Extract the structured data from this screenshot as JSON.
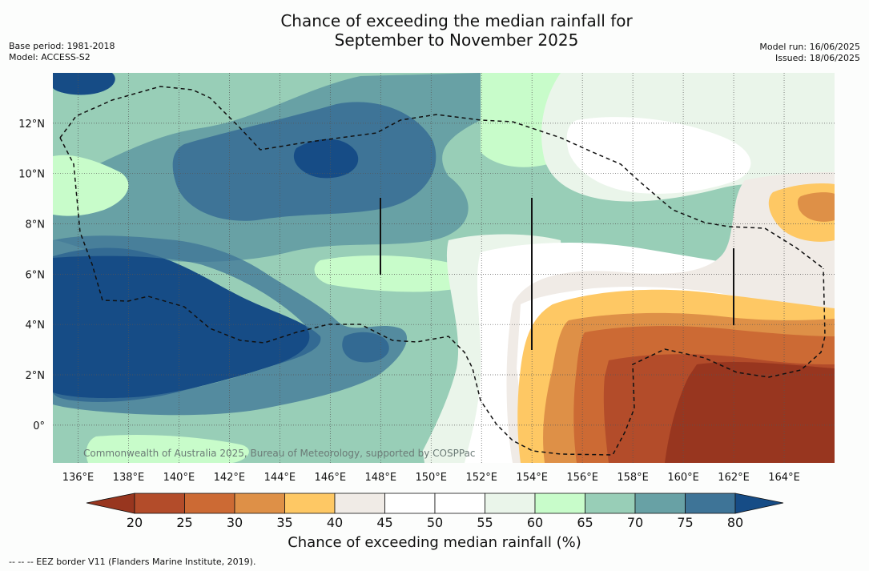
{
  "header": {
    "title_line1": "Chance of exceeding the median rainfall for",
    "title_line2": "September to November 2025",
    "base_period": "Base period: 1981-2018",
    "model": "Model: ACCESS-S2",
    "model_run": "Model run: 16/06/2025",
    "issued": "Issued: 18/06/2025"
  },
  "map": {
    "credit": "Commonwealth of Australia 2025, Bureau of Meteorology, supported by COSPPac",
    "longitude_labels": [
      "136°E",
      "138°E",
      "140°E",
      "142°E",
      "144°E",
      "146°E",
      "148°E",
      "150°E",
      "152°E",
      "154°E",
      "156°E",
      "158°E",
      "160°E",
      "162°E",
      "164°E"
    ],
    "latitude_labels": [
      "12°N",
      "10°N",
      "8°N",
      "6°N",
      "4°N",
      "2°N",
      "0°"
    ],
    "lon_range": [
      135,
      166
    ],
    "lat_range": [
      -1.5,
      14
    ]
  },
  "colorbar": {
    "title": "Chance of exceeding median rainfall (%)",
    "ticks": [
      "20",
      "25",
      "30",
      "35",
      "40",
      "45",
      "50",
      "55",
      "60",
      "65",
      "70",
      "75",
      "80"
    ],
    "under_color": "#98361f",
    "over_color": "#164c86",
    "colors": [
      "#b34c2a",
      "#cc6a34",
      "#de9047",
      "#fec864",
      "#f0ebe6",
      "#ffffff",
      "#ffffff",
      "#eaf5ea",
      "#c8fcca",
      "#98ceb7",
      "#68a1a5",
      "#3e7497"
    ]
  },
  "footnote": "-- -- -- EEZ border V11 (Flanders Marine Institute, 2019)."
}
